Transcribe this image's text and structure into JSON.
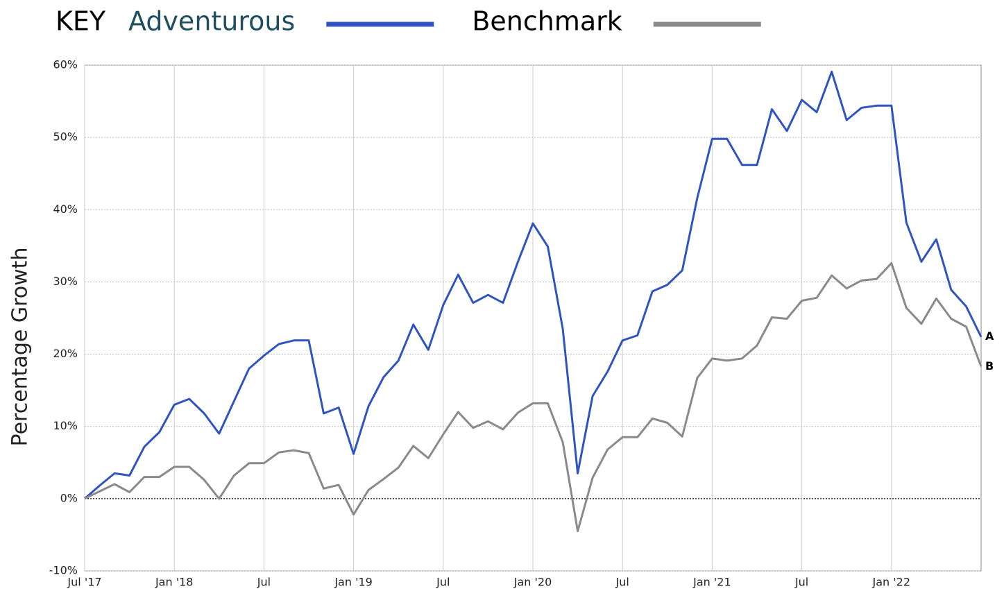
{
  "chart_data": {
    "type": "line",
    "legend_title": "KEY",
    "y_label": "Percentage Growth",
    "categories": [
      "Jul '17",
      null,
      null,
      null,
      null,
      null,
      "Jan '18",
      null,
      null,
      null,
      null,
      null,
      "Jul",
      null,
      null,
      null,
      null,
      null,
      "Jan '19",
      null,
      null,
      null,
      null,
      null,
      "Jul",
      null,
      null,
      null,
      null,
      null,
      "Jan '20",
      null,
      null,
      null,
      null,
      null,
      "Jul",
      null,
      null,
      null,
      null,
      null,
      "Jan '21",
      null,
      null,
      null,
      null,
      null,
      "Jul",
      null,
      null,
      null,
      null,
      null,
      "Jan '22",
      null,
      null,
      null,
      null,
      null,
      null
    ],
    "series": [
      {
        "name": "Adventurous",
        "color": "#2f54c0",
        "name_color": "#1f4e5f",
        "end_label": "A",
        "values": [
          0,
          1.8,
          3.5,
          3.2,
          7.2,
          9.2,
          13.0,
          13.8,
          11.8,
          9.0,
          13.5,
          18.0,
          19.8,
          21.4,
          21.9,
          21.9,
          11.8,
          12.6,
          6.2,
          12.8,
          16.8,
          19.1,
          24.1,
          20.6,
          26.8,
          31.0,
          27.1,
          28.2,
          27.1,
          32.8,
          38.1,
          34.9,
          23.5,
          3.5,
          14.2,
          17.6,
          21.9,
          22.6,
          28.7,
          29.6,
          31.6,
          41.6,
          49.8,
          49.8,
          46.2,
          46.2,
          53.9,
          50.9,
          55.2,
          53.5,
          59.1,
          52.4,
          54.1,
          54.4,
          54.4,
          38.2,
          32.8,
          35.9,
          28.9,
          26.6,
          22.4
        ]
      },
      {
        "name": "Benchmark",
        "color": "#8a8a8a",
        "name_color": "#000000",
        "end_label": "B",
        "values": [
          0,
          1.0,
          2.0,
          0.9,
          3.0,
          3.0,
          4.4,
          4.4,
          2.6,
          0.0,
          3.2,
          4.9,
          4.9,
          6.4,
          6.7,
          6.3,
          1.4,
          1.9,
          -2.2,
          1.2,
          2.7,
          4.3,
          7.3,
          5.6,
          8.9,
          12.0,
          9.8,
          10.7,
          9.6,
          11.9,
          13.2,
          13.2,
          7.8,
          -4.5,
          2.9,
          6.8,
          8.5,
          8.5,
          11.1,
          10.5,
          8.6,
          16.7,
          19.4,
          19.1,
          19.4,
          21.2,
          25.1,
          24.9,
          27.4,
          27.8,
          30.9,
          29.1,
          30.2,
          30.4,
          32.6,
          26.4,
          24.2,
          27.7,
          24.9,
          23.8,
          18.3
        ]
      }
    ],
    "ylim": [
      -10,
      60
    ],
    "yticks": [
      {
        "value": -10,
        "label": "-10%"
      },
      {
        "value": 0,
        "label": "0%"
      },
      {
        "value": 10,
        "label": "10%"
      },
      {
        "value": 20,
        "label": "20%"
      },
      {
        "value": 30,
        "label": "30%"
      },
      {
        "value": 40,
        "label": "40%"
      },
      {
        "value": 50,
        "label": "50%"
      },
      {
        "value": 60,
        "label": "60%"
      }
    ],
    "grid": true
  }
}
